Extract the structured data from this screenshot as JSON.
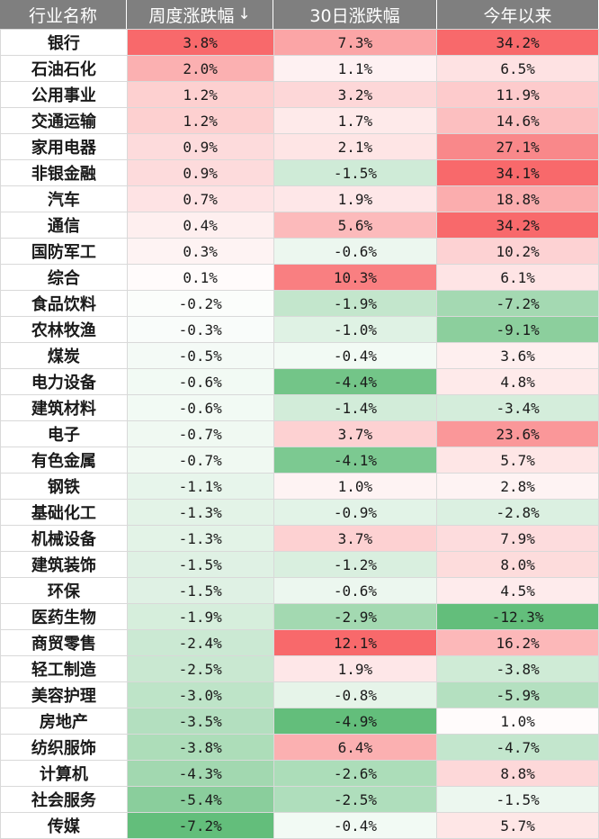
{
  "table": {
    "headers": {
      "name": "行业名称",
      "weekly": "周度涨跌幅",
      "sort_glyph": "↓",
      "d30": "30日涨跌幅",
      "ytd": "今年以来"
    },
    "rows": [
      {
        "name": "银行",
        "weekly": "3.8%",
        "d30": "7.3%",
        "ytd": "34.2%"
      },
      {
        "name": "石油石化",
        "weekly": "2.0%",
        "d30": "1.1%",
        "ytd": "6.5%"
      },
      {
        "name": "公用事业",
        "weekly": "1.2%",
        "d30": "3.2%",
        "ytd": "11.9%"
      },
      {
        "name": "交通运输",
        "weekly": "1.2%",
        "d30": "1.7%",
        "ytd": "14.6%"
      },
      {
        "name": "家用电器",
        "weekly": "0.9%",
        "d30": "2.1%",
        "ytd": "27.1%"
      },
      {
        "name": "非银金融",
        "weekly": "0.9%",
        "d30": "-1.5%",
        "ytd": "34.1%"
      },
      {
        "name": "汽车",
        "weekly": "0.7%",
        "d30": "1.9%",
        "ytd": "18.8%"
      },
      {
        "name": "通信",
        "weekly": "0.4%",
        "d30": "5.6%",
        "ytd": "34.2%"
      },
      {
        "name": "国防军工",
        "weekly": "0.3%",
        "d30": "-0.6%",
        "ytd": "10.2%"
      },
      {
        "name": "综合",
        "weekly": "0.1%",
        "d30": "10.3%",
        "ytd": "6.1%"
      },
      {
        "name": "食品饮料",
        "weekly": "-0.2%",
        "d30": "-1.9%",
        "ytd": "-7.2%"
      },
      {
        "name": "农林牧渔",
        "weekly": "-0.3%",
        "d30": "-1.0%",
        "ytd": "-9.1%"
      },
      {
        "name": "煤炭",
        "weekly": "-0.5%",
        "d30": "-0.4%",
        "ytd": "3.6%"
      },
      {
        "name": "电力设备",
        "weekly": "-0.6%",
        "d30": "-4.4%",
        "ytd": "4.8%"
      },
      {
        "name": "建筑材料",
        "weekly": "-0.6%",
        "d30": "-1.4%",
        "ytd": "-3.4%"
      },
      {
        "name": "电子",
        "weekly": "-0.7%",
        "d30": "3.7%",
        "ytd": "23.6%"
      },
      {
        "name": "有色金属",
        "weekly": "-0.7%",
        "d30": "-4.1%",
        "ytd": "5.7%"
      },
      {
        "name": "钢铁",
        "weekly": "-1.1%",
        "d30": "1.0%",
        "ytd": "2.8%"
      },
      {
        "name": "基础化工",
        "weekly": "-1.3%",
        "d30": "-0.9%",
        "ytd": "-2.8%"
      },
      {
        "name": "机械设备",
        "weekly": "-1.3%",
        "d30": "3.7%",
        "ytd": "7.9%"
      },
      {
        "name": "建筑装饰",
        "weekly": "-1.5%",
        "d30": "-1.2%",
        "ytd": "8.0%"
      },
      {
        "name": "环保",
        "weekly": "-1.5%",
        "d30": "-0.6%",
        "ytd": "4.5%"
      },
      {
        "name": "医药生物",
        "weekly": "-1.9%",
        "d30": "-2.9%",
        "ytd": "-12.3%"
      },
      {
        "name": "商贸零售",
        "weekly": "-2.4%",
        "d30": "12.1%",
        "ytd": "16.2%"
      },
      {
        "name": "轻工制造",
        "weekly": "-2.5%",
        "d30": "1.9%",
        "ytd": "-3.8%"
      },
      {
        "name": "美容护理",
        "weekly": "-3.0%",
        "d30": "-0.8%",
        "ytd": "-5.9%"
      },
      {
        "name": "房地产",
        "weekly": "-3.5%",
        "d30": "-4.9%",
        "ytd": "1.0%"
      },
      {
        "name": "纺织服饰",
        "weekly": "-3.8%",
        "d30": "6.4%",
        "ytd": "-4.7%"
      },
      {
        "name": "计算机",
        "weekly": "-4.3%",
        "d30": "-2.6%",
        "ytd": "8.8%"
      },
      {
        "name": "社会服务",
        "weekly": "-5.4%",
        "d30": "-2.5%",
        "ytd": "-1.5%"
      },
      {
        "name": "传媒",
        "weekly": "-7.2%",
        "d30": "-0.4%",
        "ytd": "5.7%"
      }
    ]
  },
  "colors": {
    "header_bg": "#7f7f7f",
    "positive": "#f8696b",
    "negative": "#63be7b",
    "neutral": "#ffffff"
  }
}
